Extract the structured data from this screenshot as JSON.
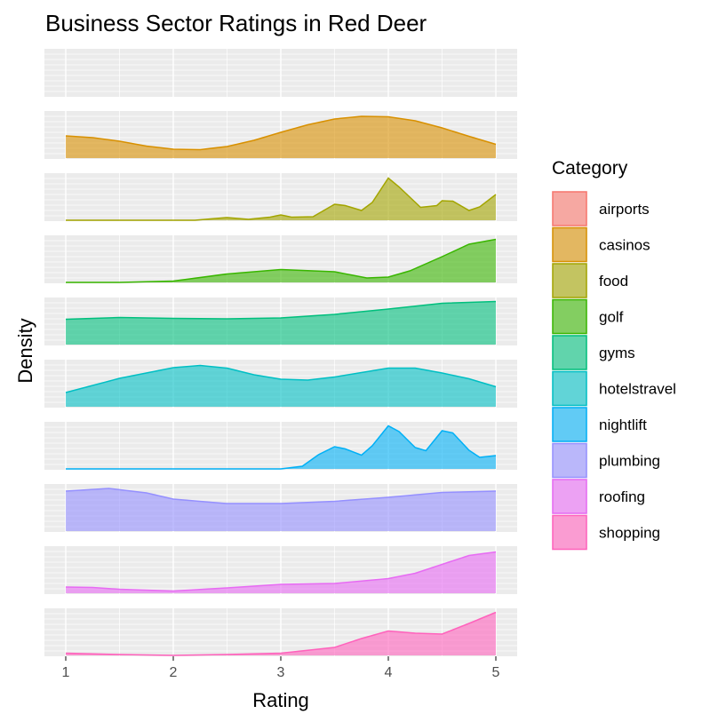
{
  "chart_data": {
    "type": "area",
    "title": "Business Sector Ratings in Red Deer",
    "xlabel": "Rating",
    "ylabel": "Density",
    "xlim": [
      1,
      5
    ],
    "x_ticks": [
      "1",
      "2",
      "3",
      "4",
      "5"
    ],
    "grid": true,
    "legend_title": "Category",
    "legend_position": "right",
    "series": [
      {
        "name": "airports",
        "color": "#F8766D",
        "points": []
      },
      {
        "name": "casinos",
        "color": "#D89000",
        "points": [
          [
            1.0,
            0.5
          ],
          [
            1.25,
            0.46
          ],
          [
            1.5,
            0.38
          ],
          [
            1.75,
            0.27
          ],
          [
            2.0,
            0.2
          ],
          [
            2.25,
            0.19
          ],
          [
            2.5,
            0.26
          ],
          [
            2.75,
            0.4
          ],
          [
            3.0,
            0.58
          ],
          [
            3.25,
            0.75
          ],
          [
            3.5,
            0.88
          ],
          [
            3.75,
            0.94
          ],
          [
            4.0,
            0.93
          ],
          [
            4.25,
            0.84
          ],
          [
            4.5,
            0.68
          ],
          [
            4.75,
            0.49
          ],
          [
            5.0,
            0.31
          ]
        ]
      },
      {
        "name": "food",
        "color": "#A3A500",
        "points": [
          [
            1.0,
            0.0
          ],
          [
            2.2,
            0.0
          ],
          [
            2.5,
            0.06
          ],
          [
            2.7,
            0.02
          ],
          [
            2.9,
            0.07
          ],
          [
            3.0,
            0.12
          ],
          [
            3.1,
            0.07
          ],
          [
            3.3,
            0.08
          ],
          [
            3.5,
            0.36
          ],
          [
            3.6,
            0.33
          ],
          [
            3.75,
            0.22
          ],
          [
            3.85,
            0.4
          ],
          [
            4.0,
            0.95
          ],
          [
            4.1,
            0.75
          ],
          [
            4.3,
            0.29
          ],
          [
            4.45,
            0.33
          ],
          [
            4.5,
            0.44
          ],
          [
            4.6,
            0.43
          ],
          [
            4.75,
            0.22
          ],
          [
            4.85,
            0.3
          ],
          [
            5.0,
            0.58
          ]
        ]
      },
      {
        "name": "golf",
        "color": "#39B600",
        "points": [
          [
            1.0,
            0.0
          ],
          [
            1.5,
            0.0
          ],
          [
            2.0,
            0.03
          ],
          [
            2.5,
            0.19
          ],
          [
            3.0,
            0.29
          ],
          [
            3.5,
            0.24
          ],
          [
            3.8,
            0.1
          ],
          [
            4.0,
            0.12
          ],
          [
            4.2,
            0.26
          ],
          [
            4.5,
            0.58
          ],
          [
            4.75,
            0.86
          ],
          [
            5.0,
            0.97
          ]
        ]
      },
      {
        "name": "gyms",
        "color": "#00BF7D",
        "points": [
          [
            1.0,
            0.57
          ],
          [
            1.5,
            0.61
          ],
          [
            2.0,
            0.59
          ],
          [
            2.5,
            0.58
          ],
          [
            3.0,
            0.6
          ],
          [
            3.5,
            0.68
          ],
          [
            4.0,
            0.8
          ],
          [
            4.5,
            0.93
          ],
          [
            5.0,
            0.97
          ]
        ]
      },
      {
        "name": "hotelstravel",
        "color": "#00BFC4",
        "points": [
          [
            1.0,
            0.32
          ],
          [
            1.5,
            0.64
          ],
          [
            2.0,
            0.88
          ],
          [
            2.25,
            0.93
          ],
          [
            2.5,
            0.87
          ],
          [
            2.75,
            0.72
          ],
          [
            3.0,
            0.62
          ],
          [
            3.25,
            0.6
          ],
          [
            3.5,
            0.67
          ],
          [
            4.0,
            0.87
          ],
          [
            4.25,
            0.87
          ],
          [
            4.5,
            0.76
          ],
          [
            4.75,
            0.63
          ],
          [
            5.0,
            0.45
          ]
        ]
      },
      {
        "name": "nightlift",
        "color": "#00B0F6",
        "points": [
          [
            1.0,
            0.0
          ],
          [
            3.0,
            0.0
          ],
          [
            3.2,
            0.06
          ],
          [
            3.35,
            0.32
          ],
          [
            3.5,
            0.5
          ],
          [
            3.6,
            0.45
          ],
          [
            3.75,
            0.31
          ],
          [
            3.85,
            0.52
          ],
          [
            4.0,
            0.97
          ],
          [
            4.1,
            0.84
          ],
          [
            4.25,
            0.48
          ],
          [
            4.35,
            0.41
          ],
          [
            4.5,
            0.86
          ],
          [
            4.6,
            0.81
          ],
          [
            4.75,
            0.42
          ],
          [
            4.85,
            0.26
          ],
          [
            5.0,
            0.3
          ]
        ]
      },
      {
        "name": "plumbing",
        "color": "#9590FF",
        "points": [
          [
            1.0,
            0.9
          ],
          [
            1.4,
            0.96
          ],
          [
            1.75,
            0.86
          ],
          [
            2.0,
            0.72
          ],
          [
            2.5,
            0.62
          ],
          [
            3.0,
            0.62
          ],
          [
            3.5,
            0.67
          ],
          [
            4.0,
            0.76
          ],
          [
            4.5,
            0.87
          ],
          [
            5.0,
            0.9
          ]
        ]
      },
      {
        "name": "roofing",
        "color": "#E76BF3",
        "points": [
          [
            1.0,
            0.14
          ],
          [
            1.25,
            0.13
          ],
          [
            1.5,
            0.09
          ],
          [
            2.0,
            0.05
          ],
          [
            2.5,
            0.12
          ],
          [
            3.0,
            0.2
          ],
          [
            3.5,
            0.22
          ],
          [
            4.0,
            0.33
          ],
          [
            4.25,
            0.45
          ],
          [
            4.5,
            0.65
          ],
          [
            4.75,
            0.85
          ],
          [
            5.0,
            0.93
          ]
        ]
      },
      {
        "name": "shopping",
        "color": "#FF62BC",
        "points": [
          [
            1.0,
            0.05
          ],
          [
            1.5,
            0.02
          ],
          [
            2.0,
            0.0
          ],
          [
            2.5,
            0.02
          ],
          [
            3.0,
            0.05
          ],
          [
            3.5,
            0.18
          ],
          [
            3.75,
            0.38
          ],
          [
            4.0,
            0.55
          ],
          [
            4.25,
            0.5
          ],
          [
            4.5,
            0.48
          ],
          [
            4.75,
            0.72
          ],
          [
            5.0,
            0.97
          ]
        ]
      }
    ]
  }
}
